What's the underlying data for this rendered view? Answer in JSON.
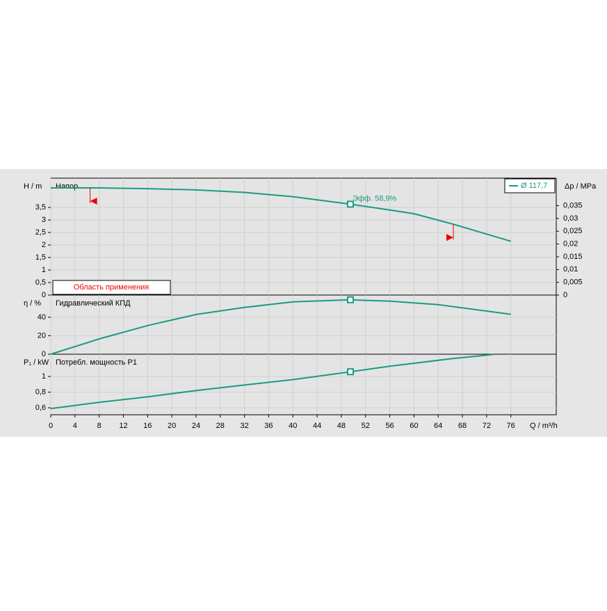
{
  "chart_data": [
    {
      "type": "line",
      "title": "Напор",
      "ylabel": "H / m",
      "y2label": "Δp / MPa",
      "annotation": "Эфф.  58,9%",
      "range_label": "Область применения",
      "range": [
        6.5,
        66.5
      ],
      "x": [
        0,
        8,
        16,
        24,
        32,
        40,
        49.5,
        56,
        60,
        66.5,
        76
      ],
      "series": [
        {
          "name": "Ø 117,7",
          "color": "#1a9a84",
          "values": [
            4.28,
            4.28,
            4.25,
            4.2,
            4.1,
            3.93,
            3.63,
            3.4,
            3.25,
            2.83,
            2.15
          ]
        }
      ],
      "duty_point": {
        "x": 49.5,
        "y": 3.63
      },
      "xlim": [
        0,
        83.5
      ],
      "ylim": [
        0,
        4.67
      ],
      "yticks": [
        0,
        {
          "value": 0.5,
          "label": "0,5"
        },
        1,
        {
          "value": 1.5,
          "label": "1,5"
        },
        2,
        {
          "value": 2.5,
          "label": "2,5"
        },
        3,
        {
          "value": 3.5,
          "label": "3,5"
        }
      ],
      "y2lim": [
        0,
        0.0458
      ],
      "y2ticks": [
        0,
        {
          "value": 0.005,
          "label": "0,005"
        },
        {
          "value": 0.01,
          "label": "0,01"
        },
        {
          "value": 0.015,
          "label": "0,015"
        },
        {
          "value": 0.02,
          "label": "0,02"
        },
        {
          "value": 0.025,
          "label": "0,025"
        },
        {
          "value": 0.03,
          "label": "0,03"
        },
        {
          "value": 0.035,
          "label": "0,035"
        }
      ],
      "grid": true
    },
    {
      "type": "line",
      "title": "Гидравлический КПД",
      "ylabel": "η / %",
      "x": [
        0,
        8,
        16,
        24,
        32,
        40,
        49.5,
        56,
        64,
        76
      ],
      "series": [
        {
          "color": "#1a9a84",
          "values": [
            0,
            16.6,
            31,
            43,
            50.6,
            56.6,
            58.9,
            57.4,
            53.7,
            43.2
          ]
        }
      ],
      "duty_point": {
        "x": 49.5,
        "y": 58.9
      },
      "xlim": [
        0,
        83.5
      ],
      "ylim": [
        0,
        64
      ],
      "yticks": [
        0,
        20,
        40
      ],
      "grid": true
    },
    {
      "type": "line",
      "title": "Потребл. мощность P1",
      "ylabel": "P₁ / kW",
      "xlabel": "Q / m³/h",
      "x": [
        0,
        8,
        16,
        24,
        32,
        40,
        49.5,
        56,
        66.5,
        73
      ],
      "series": [
        {
          "color": "#1a9a84",
          "values": [
            0.59,
            0.67,
            0.74,
            0.82,
            0.89,
            0.96,
            1.06,
            1.13,
            1.23,
            1.28
          ]
        }
      ],
      "duty_point": {
        "x": 49.5,
        "y": 1.06
      },
      "xlim": [
        0,
        83.5
      ],
      "ylim": [
        0.511,
        1.284
      ],
      "yticks": [
        {
          "value": 0.6,
          "label": "0,6"
        },
        {
          "value": 0.8,
          "label": "0,8"
        },
        1
      ],
      "xticks": [
        0,
        4,
        8,
        12,
        16,
        20,
        24,
        28,
        32,
        36,
        40,
        44,
        48,
        52,
        56,
        60,
        64,
        68,
        72,
        76
      ],
      "grid": true
    }
  ]
}
